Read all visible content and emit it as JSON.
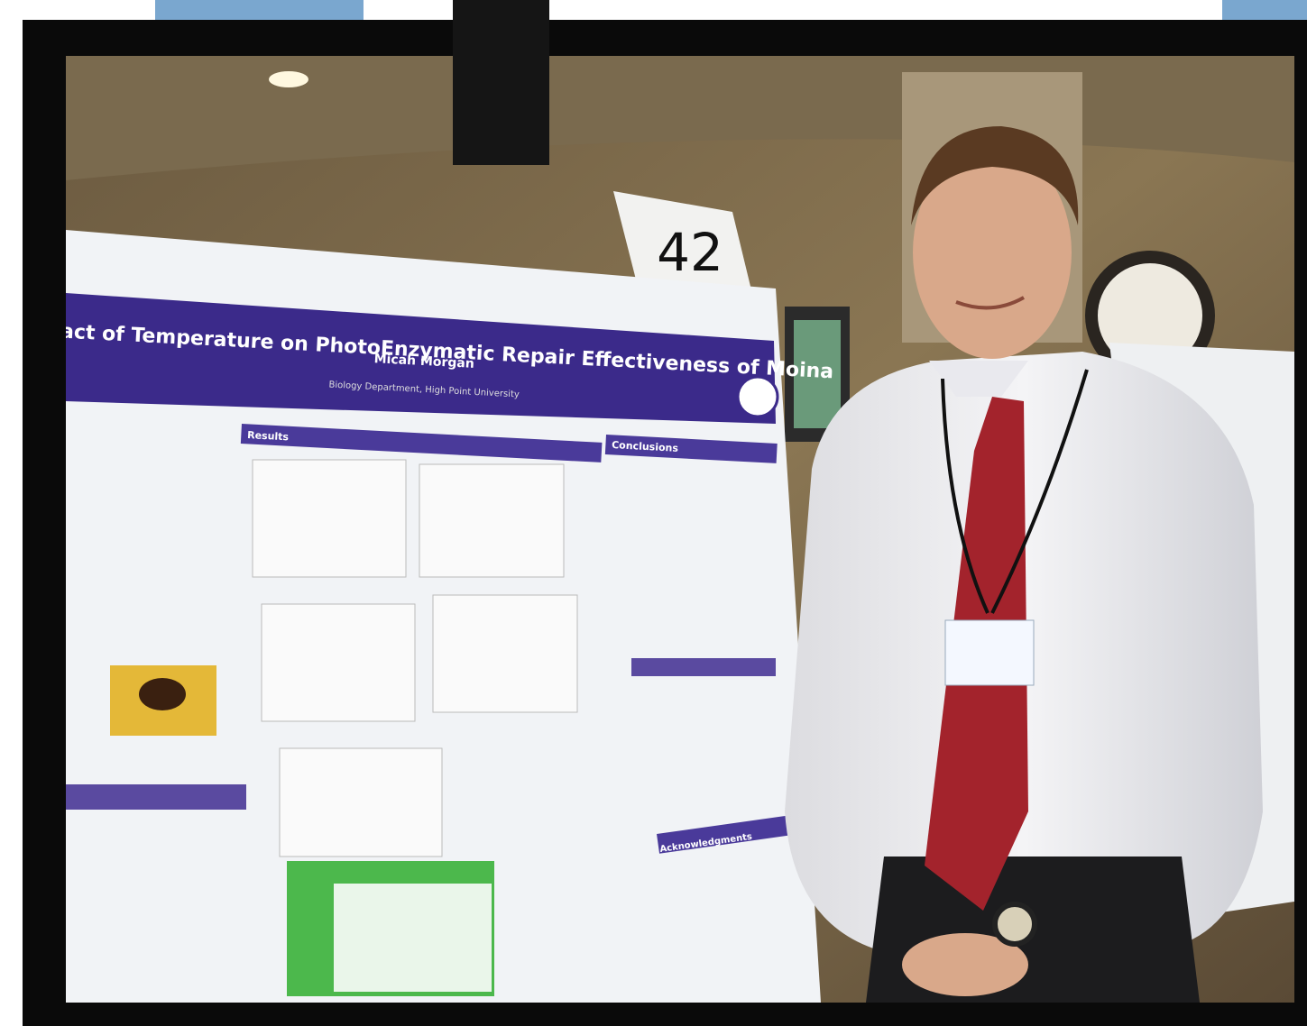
{
  "poster": {
    "title": "Impact of Temperature on PhotoEnzymatic Repair Effectiveness of Moina",
    "author": "Micah Morgan",
    "department": "Biology Department, High Point University",
    "sections": [
      "Results",
      "Conclusions",
      "Acknowledgments"
    ]
  },
  "sign": "42"
}
